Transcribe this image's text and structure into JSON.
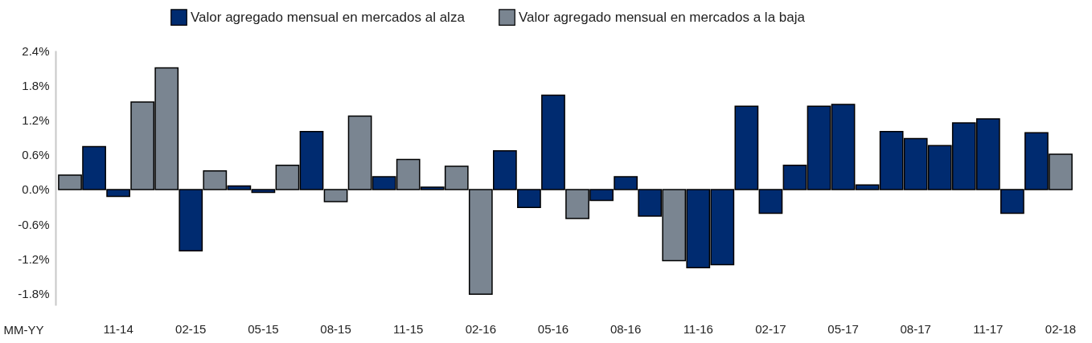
{
  "chart_data": {
    "type": "bar",
    "xlabel": "MM-YY",
    "categories": [
      null,
      null,
      "11-14",
      null,
      null,
      "02-15",
      null,
      null,
      "05-15",
      null,
      null,
      "08-15",
      null,
      null,
      "11-15",
      null,
      null,
      "02-16",
      null,
      null,
      "05-16",
      null,
      null,
      "08-16",
      null,
      null,
      "11-16",
      null,
      null,
      "02-17",
      null,
      null,
      "05-17",
      null,
      null,
      "08-17",
      null,
      null,
      "11-17",
      null,
      null,
      "02-18"
    ],
    "series": [
      {
        "name": "Valor agregado mensual en mercados al alza",
        "color": "#002b70",
        "values": [
          null,
          0.74,
          -0.12,
          null,
          null,
          -1.06,
          null,
          0.06,
          -0.05,
          null,
          1.0,
          null,
          null,
          0.22,
          null,
          0.04,
          null,
          null,
          0.67,
          -0.31,
          1.63,
          null,
          -0.19,
          0.22,
          -0.46,
          null,
          -1.35,
          -1.3,
          1.44,
          -0.41,
          0.42,
          1.44,
          1.47,
          0.08,
          1.0,
          0.88,
          0.76,
          1.15,
          1.22,
          -0.41,
          0.98,
          null
        ]
      },
      {
        "name": "Valor agregado mensual en mercados a la baja",
        "color": "#7a8591",
        "values": [
          0.25,
          null,
          null,
          1.51,
          2.1,
          null,
          0.32,
          null,
          null,
          0.42,
          null,
          -0.21,
          1.27,
          null,
          0.52,
          null,
          0.4,
          -1.81,
          null,
          null,
          null,
          -0.5,
          null,
          null,
          null,
          -1.23,
          null,
          null,
          null,
          null,
          null,
          null,
          null,
          null,
          null,
          null,
          null,
          null,
          null,
          null,
          null,
          0.61
        ]
      }
    ],
    "stacked": true,
    "ylim": [
      -2.0,
      2.4
    ],
    "yticks": [
      {
        "value": -1.8,
        "label": "-1.8%"
      },
      {
        "value": -1.2,
        "label": "-1.2%"
      },
      {
        "value": -0.6,
        "label": "-0.6%"
      },
      {
        "value": 0,
        "label": "0.0%"
      },
      {
        "value": 0.6,
        "label": "0.6%"
      },
      {
        "value": 1.2,
        "label": "1.2%"
      },
      {
        "value": 1.8,
        "label": "1.8%"
      },
      {
        "value": 2.4,
        "label": "2.4%"
      }
    ],
    "legend": "top"
  }
}
